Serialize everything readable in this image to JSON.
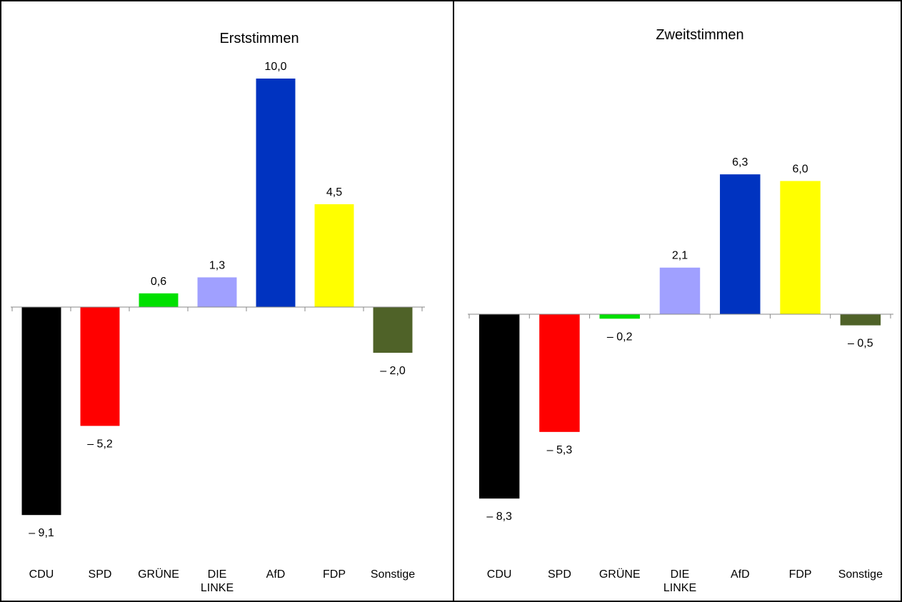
{
  "chart_data": [
    {
      "type": "bar",
      "title": "Erststimmen",
      "categories": [
        "CDU",
        "SPD",
        "GRÜNE",
        "DIE LINKE",
        "AfD",
        "FDP",
        "Sonstige"
      ],
      "values": [
        -9.1,
        -5.2,
        0.6,
        1.3,
        10.0,
        4.5,
        -2.0
      ],
      "value_labels": [
        "– 9,1",
        "– 5,2",
        "0,6",
        "1,3",
        "10,0",
        "4,5",
        "– 2,0"
      ],
      "colors": [
        "#000000",
        "#ff0000",
        "#00e000",
        "#a0a0ff",
        "#0033c0",
        "#ffff00",
        "#4f6228"
      ],
      "ylim": [
        -10,
        11
      ]
    },
    {
      "type": "bar",
      "title": "Zweitstimmen",
      "categories": [
        "CDU",
        "SPD",
        "GRÜNE",
        "DIE LINKE",
        "AfD",
        "FDP",
        "Sonstige"
      ],
      "values": [
        -8.3,
        -5.3,
        -0.2,
        2.1,
        6.3,
        6.0,
        -0.5
      ],
      "value_labels": [
        "– 8,3",
        "– 5,3",
        "– 0,2",
        "2,1",
        "6,3",
        "6,0",
        "– 0,5"
      ],
      "colors": [
        "#000000",
        "#ff0000",
        "#00e000",
        "#a0a0ff",
        "#0033c0",
        "#ffff00",
        "#4f6228"
      ],
      "ylim": [
        -10,
        11
      ]
    }
  ]
}
